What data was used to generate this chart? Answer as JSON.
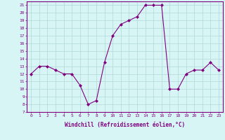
{
  "hours": [
    0,
    1,
    2,
    3,
    4,
    5,
    6,
    7,
    8,
    9,
    10,
    11,
    12,
    13,
    14,
    15,
    16,
    17,
    18,
    19,
    20,
    21,
    22,
    23
  ],
  "windchill": [
    12,
    13,
    13,
    12.5,
    12,
    12,
    10.5,
    8,
    8.5,
    13.5,
    17,
    18.5,
    19,
    19.5,
    21,
    21,
    21,
    10,
    10,
    12,
    12.5,
    12.5,
    13.5,
    12.5
  ],
  "line_color": "#800080",
  "marker": "D",
  "marker_size": 2,
  "bg_color": "#d8f5f5",
  "grid_color": "#b0d8d8",
  "xlabel": "Windchill (Refroidissement éolien,°C)",
  "xlabel_color": "#800080",
  "tick_color": "#800080",
  "ylim": [
    7,
    21.5
  ],
  "xlim": [
    -0.5,
    23.5
  ],
  "yticks": [
    7,
    8,
    9,
    10,
    11,
    12,
    13,
    14,
    15,
    16,
    17,
    18,
    19,
    20,
    21
  ],
  "xticks": [
    0,
    1,
    2,
    3,
    4,
    5,
    6,
    7,
    8,
    9,
    10,
    11,
    12,
    13,
    14,
    15,
    16,
    17,
    18,
    19,
    20,
    21,
    22,
    23
  ]
}
